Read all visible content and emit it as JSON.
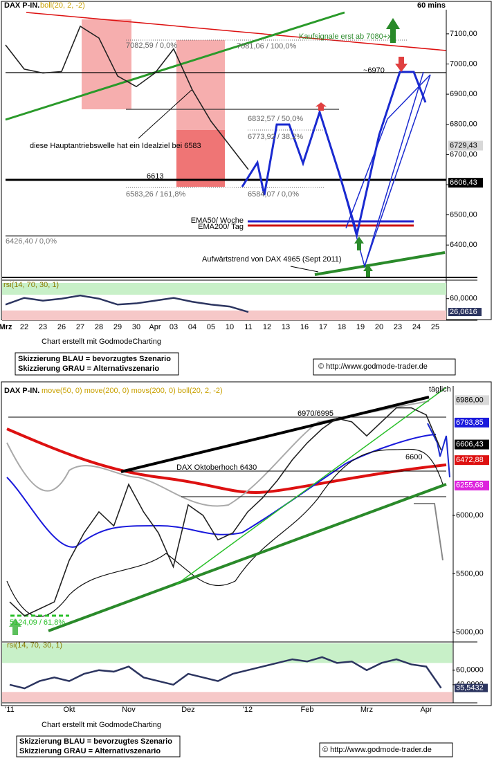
{
  "chart_data": [
    {
      "type": "line",
      "panel": "price",
      "categories": [
        "Mrz",
        "22",
        "23",
        "26",
        "27",
        "28",
        "29",
        "30",
        "Apr",
        "03",
        "04",
        "05",
        "10",
        "11",
        "12",
        "13",
        "16",
        "17",
        "18",
        "19",
        "20",
        "23",
        "24",
        "25"
      ],
      "series": [
        {
          "name": "DAX P-IN.",
          "color": "#222222",
          "values": [
            7063,
            6983,
            6970,
            6975,
            7125,
            7086,
            6960,
            6925,
            6970,
            7050,
            6914,
            6810,
            6730,
            6650,
            null,
            null,
            null,
            null,
            null,
            null,
            null,
            null,
            null,
            null
          ]
        }
      ],
      "ylim": [
        6295,
        7180
      ],
      "yticks": [
        {
          "value": 6400,
          "label": "6400,00"
        },
        {
          "value": 6500,
          "label": "6500,00"
        },
        {
          "value": 6600,
          "label": "6600,00"
        },
        {
          "value": 6700,
          "label": "6700,00"
        },
        {
          "value": 6800,
          "label": "6800,00"
        },
        {
          "value": 6900,
          "label": "6900,00"
        },
        {
          "value": 7000,
          "label": "7000,00"
        },
        {
          "value": 7100,
          "label": "7100,00"
        }
      ],
      "price_labels": [
        {
          "value": 6729.43,
          "label": "6729,43",
          "color": "#d8d8d8",
          "text_color": "#000000"
        },
        {
          "value": 6606.43,
          "label": "6606,43",
          "color": "#000000",
          "text_color": "#ffffff"
        }
      ],
      "indicator": "boll(20, 2, -2)",
      "interval": "60 mins",
      "annotations": [
        "DAX P-IN.",
        "Kaufsignale erst ab 7080+x",
        "7082,59 / 0,0%",
        "7081,06 / 100,0%",
        "~6970",
        "6832,57 / 50,0%",
        "6773,92 / 38,2%",
        "diese Hauptantriebswelle hat ein Idealziel bei 6583",
        "6613",
        "6583,26 / 161,8%",
        "6584,07 / 0,0%",
        "EMA50/ Woche",
        "EMA200/ Tag",
        "6426,40 / 0,0%",
        "Aufwärtstrend von DAX 4965 (Sept 2011)"
      ],
      "footer": {
        "credit": "Chart erstellt mit GodmodeCharting",
        "legend": [
          "Skizzierung BLAU = bevorzugtes Szenario",
          "Skizzierung GRAU = Alternativszenario"
        ],
        "copyright": "© http://www.godmode-trader.de"
      }
    },
    {
      "type": "line",
      "panel": "rsi",
      "title": "rsi(14, 70, 30, 1)",
      "series": [
        {
          "name": "rsi",
          "color": "#2c3560",
          "values": [
            45,
            62,
            55,
            60,
            68,
            60,
            45,
            48,
            55,
            62,
            52,
            45,
            40,
            26.0616,
            null,
            null,
            null,
            null,
            null,
            null,
            null,
            null,
            null,
            null
          ]
        }
      ],
      "ylim": [
        5,
        100
      ],
      "yticks": [
        {
          "value": 60,
          "label": "60,0000"
        }
      ],
      "upper_band": 70,
      "lower_band": 30,
      "last_label": {
        "value": 26.0616,
        "label": "26,0616"
      }
    },
    {
      "type": "line",
      "panel": "price",
      "categories": [
        "'11",
        null,
        null,
        null,
        "Okt",
        null,
        null,
        null,
        "Nov",
        null,
        null,
        null,
        "Dez",
        null,
        null,
        null,
        "'12",
        null,
        null,
        null,
        "Feb",
        null,
        null,
        null,
        "Mrz",
        null,
        null,
        null,
        "Apr",
        null
      ],
      "series": [
        {
          "name": "DAX P-IN.",
          "color": "#222222",
          "values": [
            5260,
            5140,
            5200,
            5260,
            5615,
            5850,
            6030,
            5910,
            6265,
            6030,
            5850,
            5560,
            6090,
            6000,
            5790,
            5850,
            6030,
            6150,
            6300,
            6475,
            6620,
            6740,
            6830,
            6800,
            6680,
            6800,
            6920,
            6920,
            6860,
            6560
          ]
        }
      ],
      "ylim": [
        4935,
        7095
      ],
      "yticks": [
        {
          "value": 5000,
          "label": "5000,00"
        },
        {
          "value": 5500,
          "label": "5500,00"
        },
        {
          "value": 6000,
          "label": "6000,00"
        }
      ],
      "price_labels": [
        {
          "value": 6986,
          "label": "6986,00",
          "color": "#d8d8d8",
          "text_color": "#000000"
        },
        {
          "value": 6793.85,
          "label": "6793,85",
          "color": "#1a1adc",
          "text_color": "#ffffff"
        },
        {
          "value": 6606.43,
          "label": "6606,43",
          "color": "#000000",
          "text_color": "#ffffff"
        },
        {
          "value": 6472.88,
          "label": "6472,88",
          "color": "#dd1111",
          "text_color": "#ffffff"
        },
        {
          "value": 6255.68,
          "label": "6255,68",
          "color": "#dd22dd",
          "text_color": "#ffffff"
        }
      ],
      "indicator": "move(50, 0) move(200, 0) movs(200, 0) boll(20, 2, -2)",
      "interval": "täglich",
      "annotations": [
        "DAX P-IN.",
        "6970/6995",
        "DAX Oktoberhoch 6430",
        "6600",
        "5124,09 / 61,8%"
      ],
      "footer": {
        "credit": "Chart erstellt mit GodmodeCharting",
        "legend": [
          "Skizzierung BLAU = bevorzugtes Szenario",
          "Skizzierung GRAU = Alternativszenario"
        ],
        "copyright": "© http://www.godmode-trader.de"
      }
    },
    {
      "type": "line",
      "panel": "rsi",
      "title": "rsi(14, 70, 30, 1)",
      "series": [
        {
          "name": "rsi",
          "color": "#2c3560",
          "values": [
            40,
            35,
            45,
            50,
            45,
            55,
            60,
            58,
            65,
            50,
            45,
            40,
            55,
            50,
            45,
            55,
            60,
            65,
            70,
            75,
            72,
            78,
            70,
            72,
            60,
            70,
            75,
            68,
            65,
            35.5432
          ]
        }
      ],
      "ylim": [
        16,
        97
      ],
      "yticks": [
        {
          "value": 40,
          "label": "40,0000"
        },
        {
          "value": 60,
          "label": "60,0000"
        }
      ],
      "upper_band": 70,
      "lower_band": 30,
      "last_label": {
        "value": 35.5432,
        "label": "35,5432"
      }
    }
  ]
}
